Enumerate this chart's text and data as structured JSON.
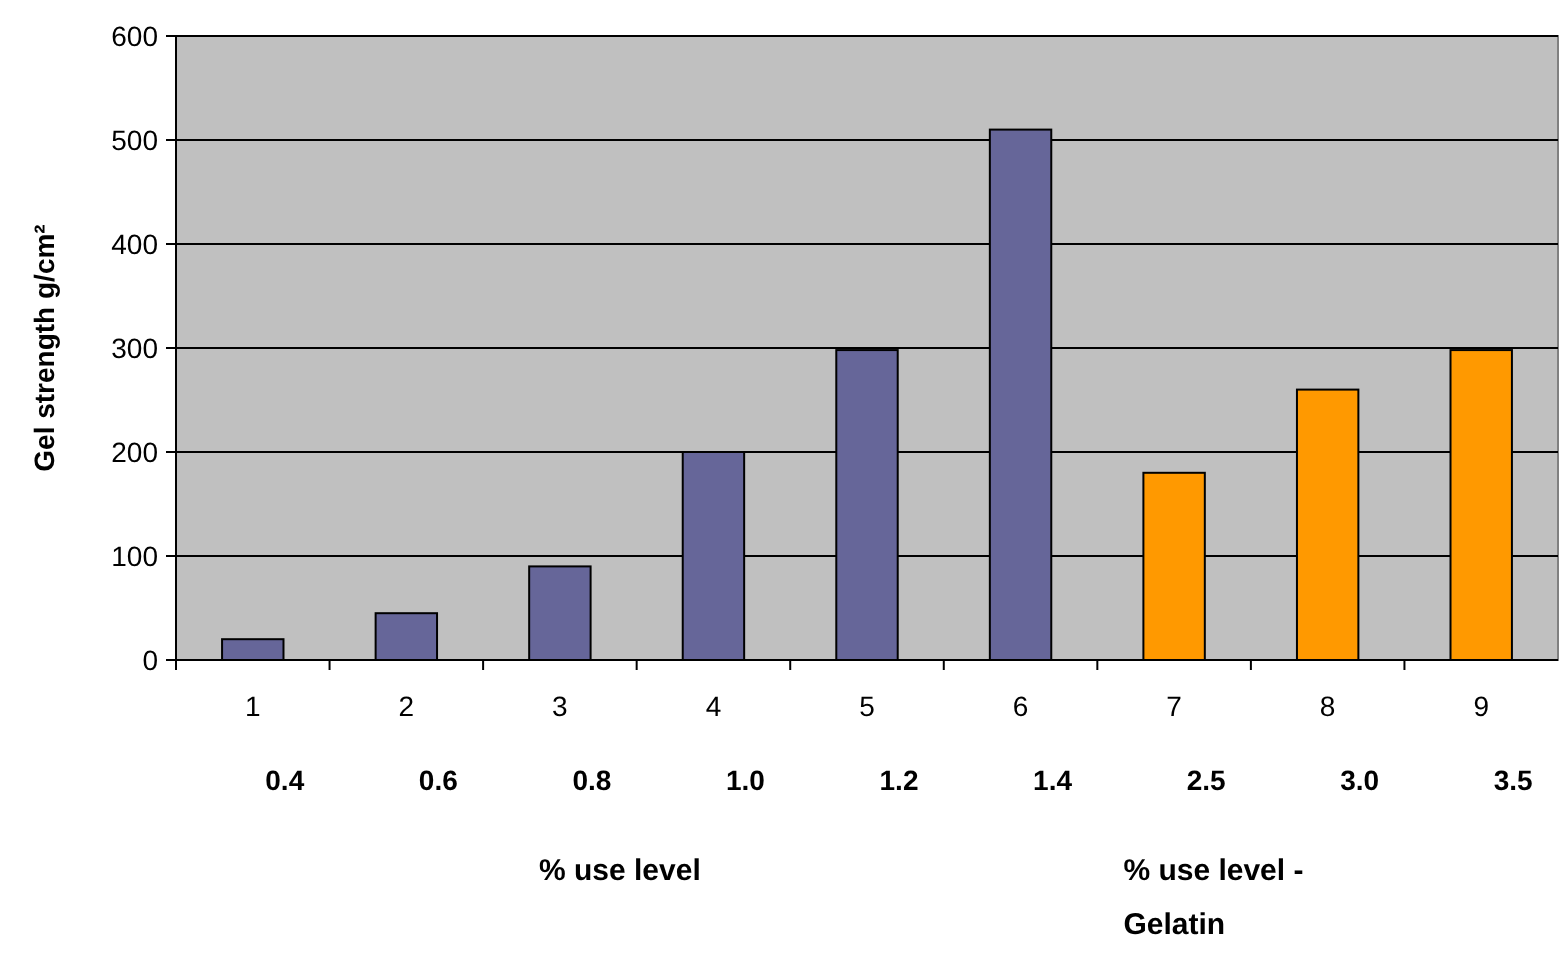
{
  "chart_data": {
    "type": "bar",
    "ylabel": "Gel strength g/cm²",
    "xlabel": "% use level",
    "categories": [
      "1",
      "2",
      "3",
      "4",
      "5",
      "6",
      "7",
      "8",
      "9"
    ],
    "values": [
      20,
      45,
      90,
      200,
      298,
      510,
      180,
      260,
      298
    ],
    "colors": [
      "#666699",
      "#666699",
      "#666699",
      "#666699",
      "#666699",
      "#666699",
      "#ff9900",
      "#ff9900",
      "#ff9900"
    ],
    "ylim": [
      0,
      600
    ],
    "yticks": [
      0,
      100,
      200,
      300,
      400,
      500,
      600
    ],
    "grid": "y",
    "annotations": [
      "0.4",
      "0.6",
      "0.8",
      "1.0",
      "1.2",
      "1.4",
      "2.5",
      "3.0",
      "3.5",
      "% use level - Gelatin"
    ]
  }
}
